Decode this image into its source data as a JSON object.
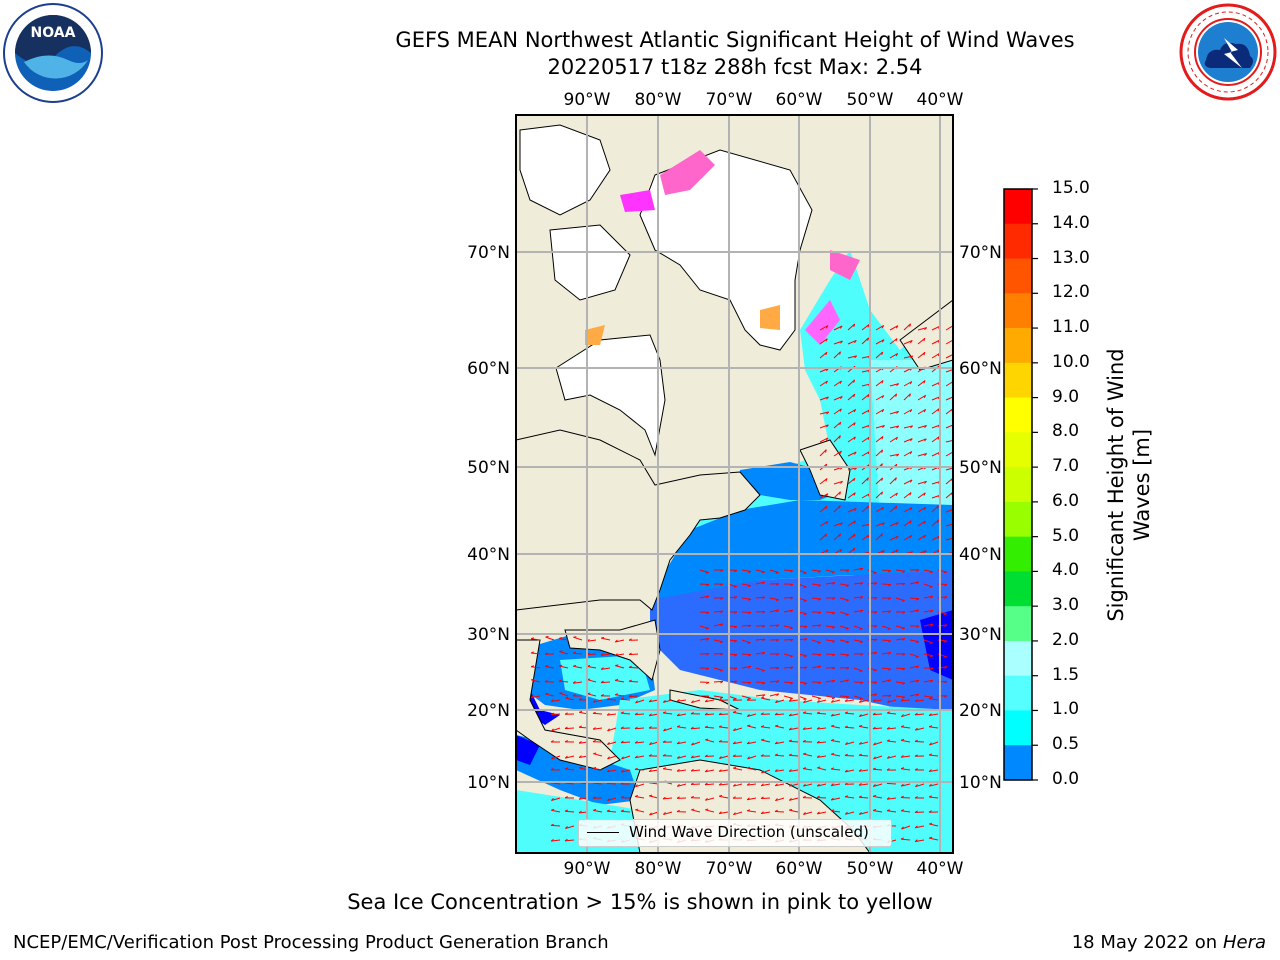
{
  "header": {
    "title_line1": "GEFS MEAN Northwest Atlantic Significant Height of Wind Waves",
    "title_line2": "20220517 t18z 288h fcst   Max: 2.54"
  },
  "logos": {
    "left": "noaa-logo",
    "right": "nws-logo",
    "noaa_text": "NOAA",
    "nws_ring_text": "NATIONAL WEATHER SERVICE"
  },
  "map": {
    "lon_ticks": [
      "90°W",
      "80°W",
      "70°W",
      "60°W",
      "50°W",
      "40°W"
    ],
    "lat_ticks": [
      "70°N",
      "60°N",
      "50°N",
      "40°N",
      "30°N",
      "20°N",
      "10°N"
    ],
    "legend_label": "Wind Wave Direction (unscaled)",
    "colors": {
      "land": "#efedd9",
      "ice_free_land": "#ffffff",
      "grid": "#b3b3b3",
      "arrows": "#ff0000"
    }
  },
  "colorbar": {
    "title": "Significant Height of Wind Waves [m]",
    "title_line1": "Significant Height of Wind",
    "title_line2": "Waves [m]",
    "labels": [
      "15.0",
      "14.0",
      "13.0",
      "12.0",
      "11.0",
      "10.0",
      "9.0",
      "8.0",
      "7.0",
      "6.0",
      "5.0",
      "4.0",
      "3.0",
      "2.0",
      "1.5",
      "1.0",
      "0.5",
      "0.0"
    ],
    "colors": [
      "#ff0000",
      "#ff2a00",
      "#ff5500",
      "#ff8000",
      "#ffaa00",
      "#ffd500",
      "#ffff00",
      "#e6ff00",
      "#ccff00",
      "#99ff00",
      "#33ee00",
      "#00dd33",
      "#55ff88",
      "#aaffff",
      "#55ffff",
      "#00ffff",
      "#0088ff",
      "#0000ff"
    ]
  },
  "footer": {
    "note": "Sea Ice Concentration > 15% is shown in pink to yellow",
    "left": "NCEP/EMC/Verification Post Processing Product Generation Branch",
    "right_date": "18 May 2022 on",
    "right_host": "Hera"
  }
}
